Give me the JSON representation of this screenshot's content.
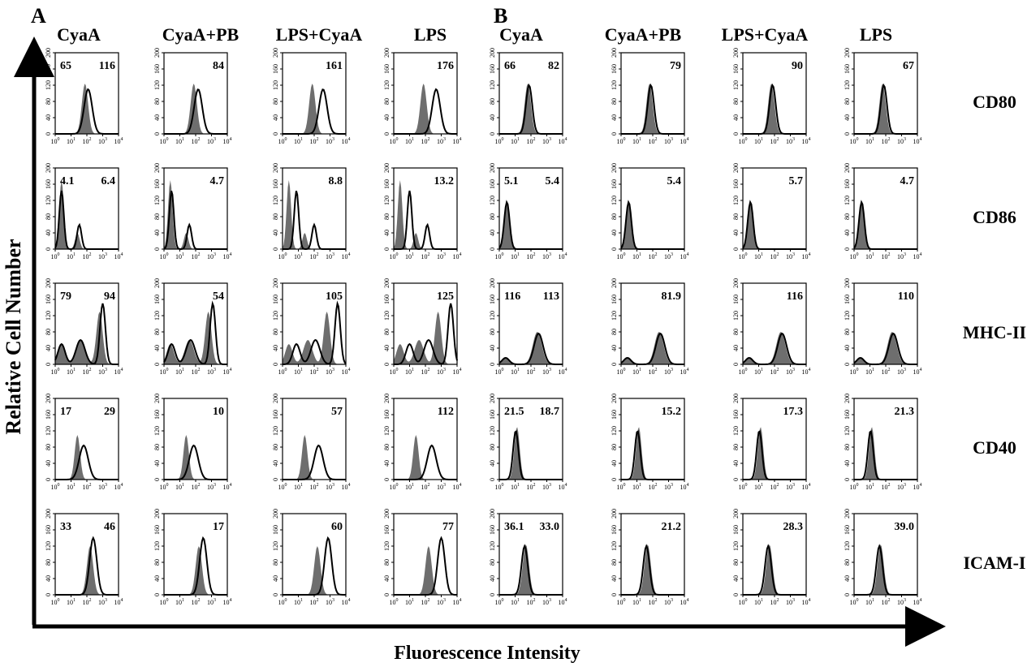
{
  "figure": {
    "xlabel": "Fluorescence Intensity",
    "ylabel": "Relative Cell Number",
    "x_ticks": [
      "10^0",
      "10^1",
      "10^2",
      "10^3",
      "10^4"
    ],
    "y_ticks": [
      "0",
      "40",
      "80",
      "120",
      "160",
      "200"
    ],
    "markers": [
      "CD80",
      "CD86",
      "MHC-II",
      "CD40",
      "ICAM-I"
    ],
    "colors": {
      "filled_histogram": "#6e6e6e",
      "open_histogram": "#000000"
    }
  },
  "chart_data": [
    {
      "type": "area",
      "panel": "A",
      "x_scale": "log",
      "xlim": [
        1,
        10000
      ],
      "ylim": [
        0,
        200
      ],
      "conditions": [
        "CyaA",
        "CyaA+PB",
        "LPS+CyaA",
        "LPS"
      ],
      "series": [
        {
          "name": "CD80",
          "values": [
            [
              "65",
              "116"
            ],
            [
              "84"
            ],
            [
              "161"
            ],
            [
              "176"
            ]
          ]
        },
        {
          "name": "CD86",
          "values": [
            [
              "4.1",
              "6.4"
            ],
            [
              "4.7"
            ],
            [
              "8.8"
            ],
            [
              "13.2"
            ]
          ]
        },
        {
          "name": "MHC-II",
          "values": [
            [
              "79",
              "94"
            ],
            [
              "54"
            ],
            [
              "105"
            ],
            [
              "125"
            ]
          ]
        },
        {
          "name": "CD40",
          "values": [
            [
              "17",
              "29"
            ],
            [
              "10"
            ],
            [
              "57"
            ],
            [
              "112"
            ]
          ]
        },
        {
          "name": "ICAM-I",
          "values": [
            [
              "33",
              "46"
            ],
            [
              "17"
            ],
            [
              "60"
            ],
            [
              "77"
            ]
          ]
        }
      ]
    },
    {
      "type": "area",
      "panel": "B",
      "x_scale": "log",
      "xlim": [
        1,
        10000
      ],
      "ylim": [
        0,
        200
      ],
      "conditions": [
        "CyaA",
        "CyaA+PB",
        "LPS+CyaA",
        "LPS"
      ],
      "series": [
        {
          "name": "CD80",
          "values": [
            [
              "66",
              "82"
            ],
            [
              "79"
            ],
            [
              "90"
            ],
            [
              "67"
            ]
          ]
        },
        {
          "name": "CD86",
          "values": [
            [
              "5.1",
              "5.4"
            ],
            [
              "5.4"
            ],
            [
              "5.7"
            ],
            [
              "4.7"
            ]
          ]
        },
        {
          "name": "MHC-II",
          "values": [
            [
              "116",
              "113"
            ],
            [
              "81.9"
            ],
            [
              "116"
            ],
            [
              "110"
            ]
          ]
        },
        {
          "name": "CD40",
          "values": [
            [
              "21.5",
              "18.7"
            ],
            [
              "15.2"
            ],
            [
              "17.3"
            ],
            [
              "21.3"
            ]
          ]
        },
        {
          "name": "ICAM-I",
          "values": [
            [
              "36.1",
              "33.0"
            ],
            [
              "21.2"
            ],
            [
              "28.3"
            ],
            [
              "39.0"
            ]
          ]
        }
      ]
    }
  ]
}
